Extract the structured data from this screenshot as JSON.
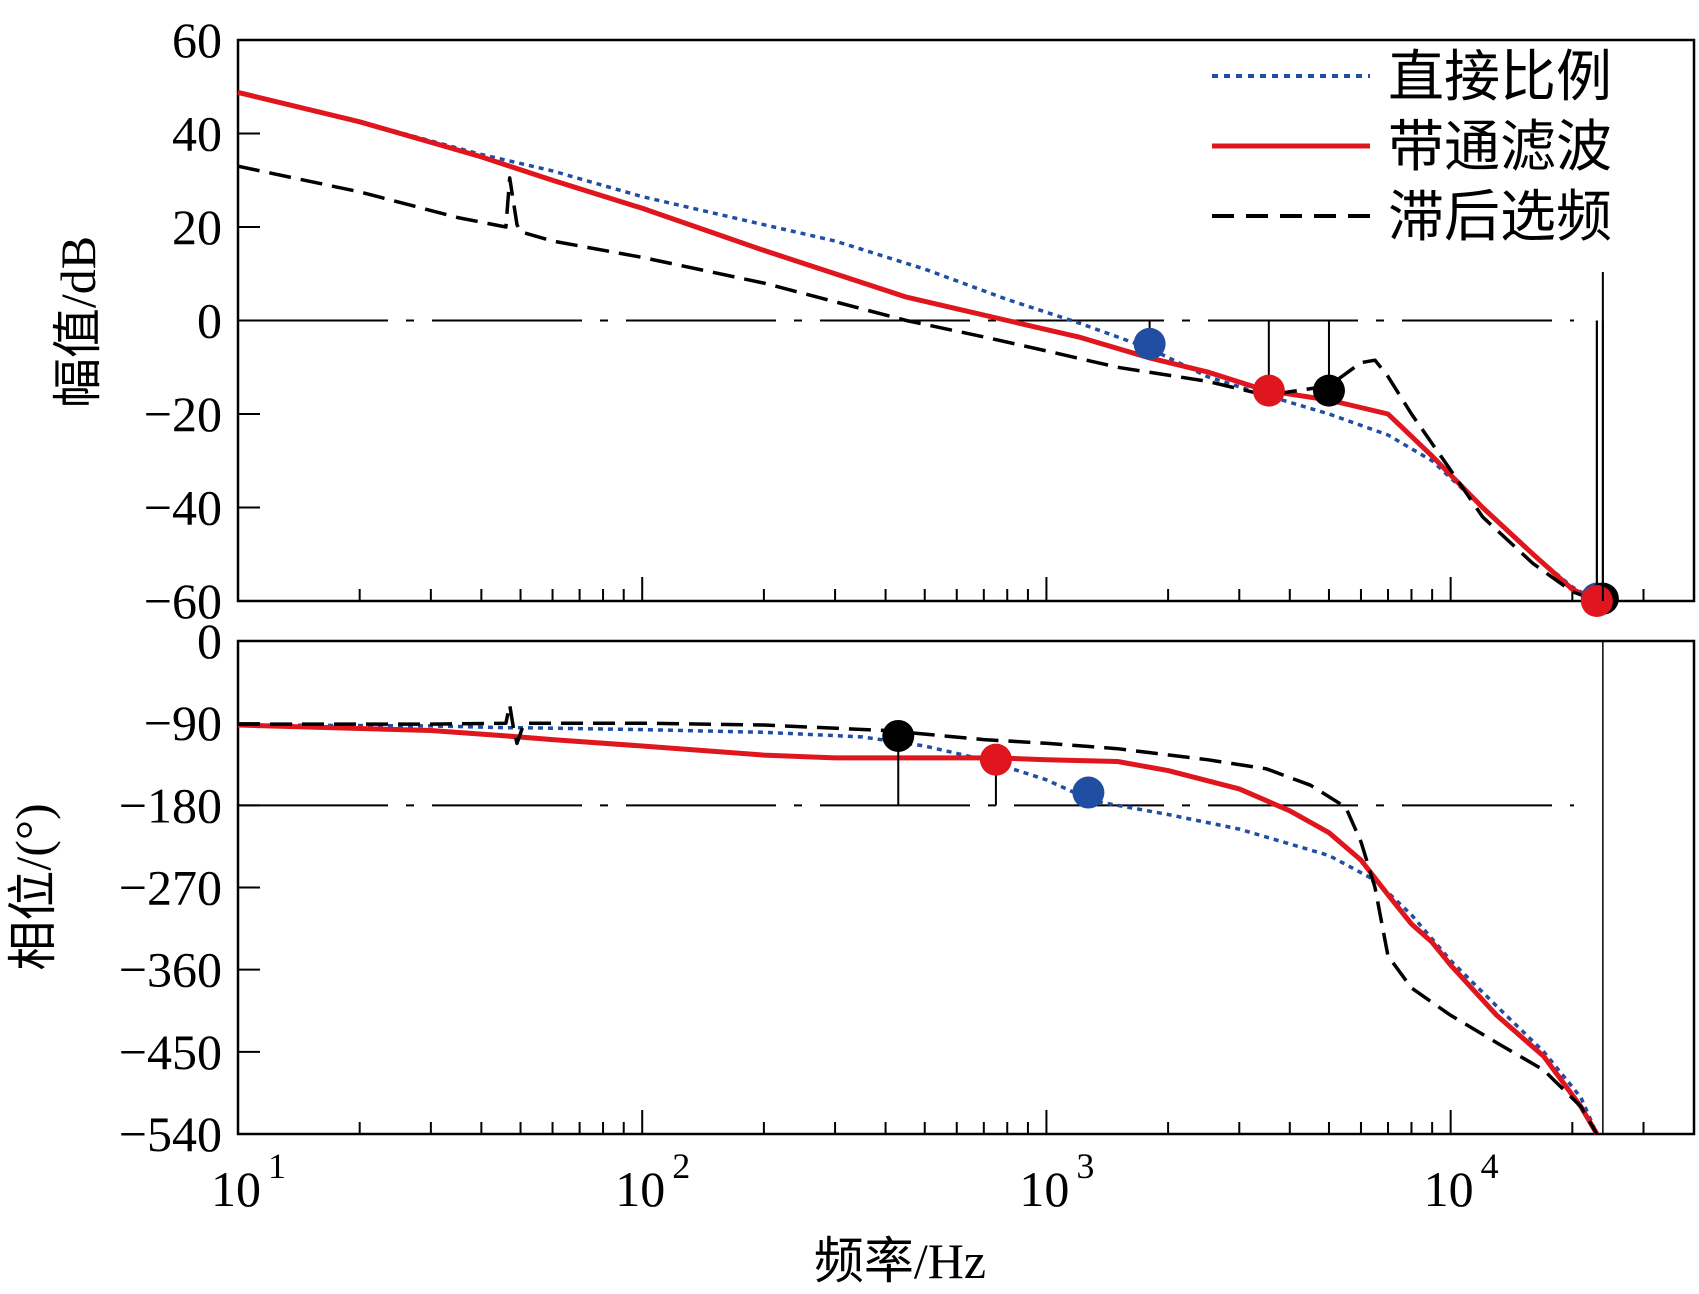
{
  "colors": {
    "direct": "#1f4ea3",
    "bandpass": "#e0161e",
    "lag": "#000000"
  },
  "chart_data": [
    {
      "type": "line",
      "panel": "magnitude",
      "ylabel": "幅值/dB",
      "ylim": [
        -60,
        60
      ],
      "yticks": [
        "60",
        "40",
        "20",
        "0",
        "−20",
        "−40",
        "−60"
      ],
      "xscale": "log",
      "xlim": [
        10,
        40000
      ],
      "legend": {
        "placement": "top-right",
        "entries": [
          "直接比例",
          "带通滤波",
          "滞后选频"
        ]
      },
      "reference_line": 0,
      "series": [
        {
          "name": "直接比例",
          "style": "dotted",
          "x": [
            10,
            20,
            40,
            60,
            100,
            200,
            300,
            500,
            800,
            1200,
            1800,
            2500,
            3500,
            5000,
            7000,
            9000,
            12000,
            16000,
            20000,
            23000
          ],
          "y": [
            48.8,
            42.5,
            35.5,
            32,
            26.5,
            20.5,
            17,
            11,
            4.5,
            -0.5,
            -6,
            -12,
            -16,
            -20,
            -24.5,
            -30,
            -40,
            -50,
            -57,
            -60
          ]
        },
        {
          "name": "带通滤波",
          "style": "solid",
          "x": [
            10,
            20,
            40,
            60,
            100,
            200,
            300,
            450,
            600,
            800,
            1200,
            1800,
            2500,
            3500,
            5000,
            7000,
            9000,
            12000,
            16000,
            20000,
            23000
          ],
          "y": [
            48.8,
            42.5,
            35,
            30,
            24,
            15,
            10,
            5,
            2.5,
            0,
            -3.5,
            -8,
            -11,
            -15,
            -17,
            -20,
            -29,
            -40,
            -50,
            -57.5,
            -60
          ]
        },
        {
          "name": "滞后选频",
          "style": "dashed",
          "x": [
            10,
            20,
            35,
            46,
            47,
            49,
            50,
            60,
            100,
            200,
            300,
            450,
            700,
            1000,
            1500,
            2500,
            3500,
            5000,
            6000,
            6500,
            7000,
            8000,
            10000,
            12000,
            16000,
            20000,
            23000
          ],
          "y": [
            33,
            27.5,
            22,
            20,
            30.5,
            20.5,
            19,
            17,
            13.5,
            8,
            4,
            0,
            -3.5,
            -6.5,
            -10,
            -13,
            -16,
            -14,
            -9,
            -8.5,
            -12,
            -20,
            -32,
            -42,
            -52,
            -58,
            -60
          ]
        }
      ],
      "markers": [
        {
          "series": "直接比例",
          "x": 1800,
          "y": -5
        },
        {
          "series": "带通滤波",
          "x": 3550,
          "y": -15
        },
        {
          "series": "滞后选频",
          "x": 5000,
          "y": -15
        },
        {
          "series": "直接比例",
          "x": 23000,
          "y": -59.5
        },
        {
          "series": "滞后选频",
          "x": 23800,
          "y": -59.5
        },
        {
          "series": "带通滤波",
          "x": 23000,
          "y": -60
        }
      ]
    },
    {
      "type": "line",
      "panel": "phase",
      "xlabel": "频率/Hz",
      "ylabel": "相位/(°)",
      "ylim": [
        -540,
        0
      ],
      "yticks": [
        "0",
        "−90",
        "−180",
        "−270",
        "−360",
        "−450",
        "−540"
      ],
      "xscale": "log",
      "xlim": [
        10,
        40000
      ],
      "xticks": [
        {
          "base": "10",
          "exp": "1"
        },
        {
          "base": "10",
          "exp": "2"
        },
        {
          "base": "10",
          "exp": "3"
        },
        {
          "base": "10",
          "exp": "4"
        }
      ],
      "reference_line": -180,
      "series": [
        {
          "name": "直接比例",
          "style": "dotted",
          "x": [
            10,
            30,
            46,
            50,
            100,
            200,
            350,
            500,
            700,
            1000,
            1300,
            2000,
            3000,
            5000,
            6500,
            8000,
            10000,
            13000,
            17000,
            21000,
            23000
          ],
          "y": [
            -92,
            -93,
            -95,
            -95,
            -97,
            -100,
            -105,
            -115,
            -130,
            -152,
            -175,
            -190,
            -206,
            -235,
            -262,
            -300,
            -350,
            -400,
            -450,
            -500,
            -540
          ]
        },
        {
          "name": "带通滤波",
          "style": "solid",
          "x": [
            10,
            30,
            46,
            60,
            100,
            200,
            300,
            500,
            750,
            1000,
            1500,
            2000,
            3000,
            4000,
            5000,
            6000,
            7000,
            8000,
            9000,
            10000,
            13000,
            17000,
            21000,
            23000
          ],
          "y": [
            -92,
            -98,
            -104,
            -108,
            -115,
            -125,
            -128,
            -128,
            -128,
            -130,
            -132,
            -142,
            -162,
            -186,
            -210,
            -240,
            -278,
            -310,
            -330,
            -355,
            -410,
            -455,
            -510,
            -540
          ]
        },
        {
          "name": "滞后选频",
          "style": "dashed",
          "x": [
            10,
            30,
            46,
            47,
            48,
            49,
            51,
            100,
            200,
            400,
            700,
            1000,
            1500,
            2500,
            3500,
            4500,
            5500,
            6000,
            6500,
            7000,
            8000,
            10000,
            13000,
            17000,
            21000,
            23000
          ],
          "y": [
            -91,
            -91,
            -90,
            -70,
            -95,
            -112,
            -90,
            -90,
            -92,
            -98,
            -108,
            -112,
            -118,
            -130,
            -140,
            -158,
            -182,
            -220,
            -270,
            -345,
            -380,
            -410,
            -440,
            -470,
            -510,
            -540
          ]
        }
      ],
      "markers": [
        {
          "series": "滞后选频",
          "x": 430,
          "y": -104
        },
        {
          "series": "带通滤波",
          "x": 750,
          "y": -130
        },
        {
          "series": "直接比例",
          "x": 1270,
          "y": -166
        }
      ]
    }
  ]
}
